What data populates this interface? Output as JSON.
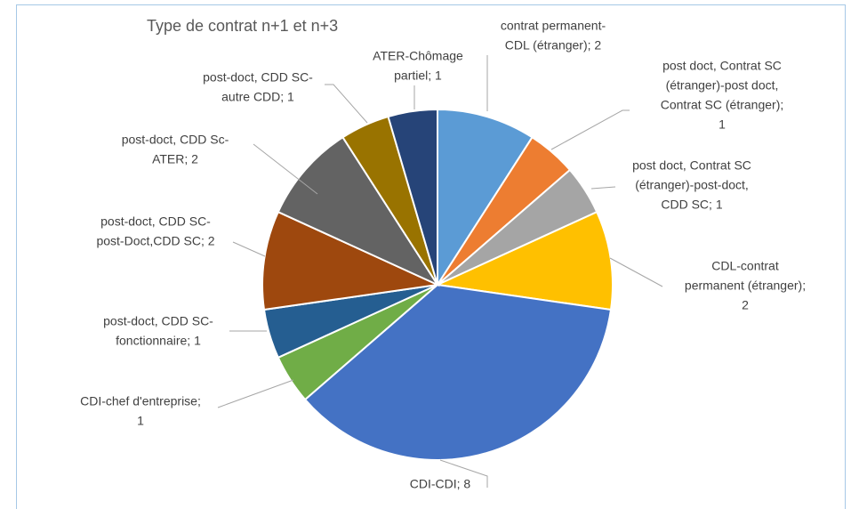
{
  "chart_data": {
    "type": "pie",
    "title": "Type de contrat n+1 et n+3",
    "values": [
      2,
      1,
      1,
      2,
      8,
      1,
      1,
      2,
      2,
      1,
      1
    ],
    "value_labels": [
      [
        "contrat permanent-",
        "CDL (étranger); 2"
      ],
      [
        "post doct, Contrat SC",
        "(étranger)-post doct,",
        "Contrat SC (étranger);",
        "1"
      ],
      [
        "post doct, Contrat SC",
        "(étranger)-post-doct,",
        "CDD SC; 1"
      ],
      [
        "CDL-contrat",
        "permanent (étranger);",
        "2"
      ],
      [
        "CDI-CDI; 8"
      ],
      [
        "CDI-chef d'entreprise;",
        "1"
      ],
      [
        "post-doct, CDD SC-",
        "fonctionnaire; 1"
      ],
      [
        "post-doct, CDD SC-",
        "post-Doct,CDD SC; 2"
      ],
      [
        "post-doct, CDD Sc-",
        "ATER; 2"
      ],
      [
        "post-doct, CDD SC-",
        "autre CDD; 1"
      ],
      [
        "ATER-Chômage",
        "partiel; 1"
      ]
    ],
    "colors": [
      "#5b9bd5",
      "#ed7d31",
      "#a5a5a5",
      "#ffc000",
      "#4472c4",
      "#70ad47",
      "#255e91",
      "#9e480e",
      "#636363",
      "#997300",
      "#264478"
    ]
  }
}
